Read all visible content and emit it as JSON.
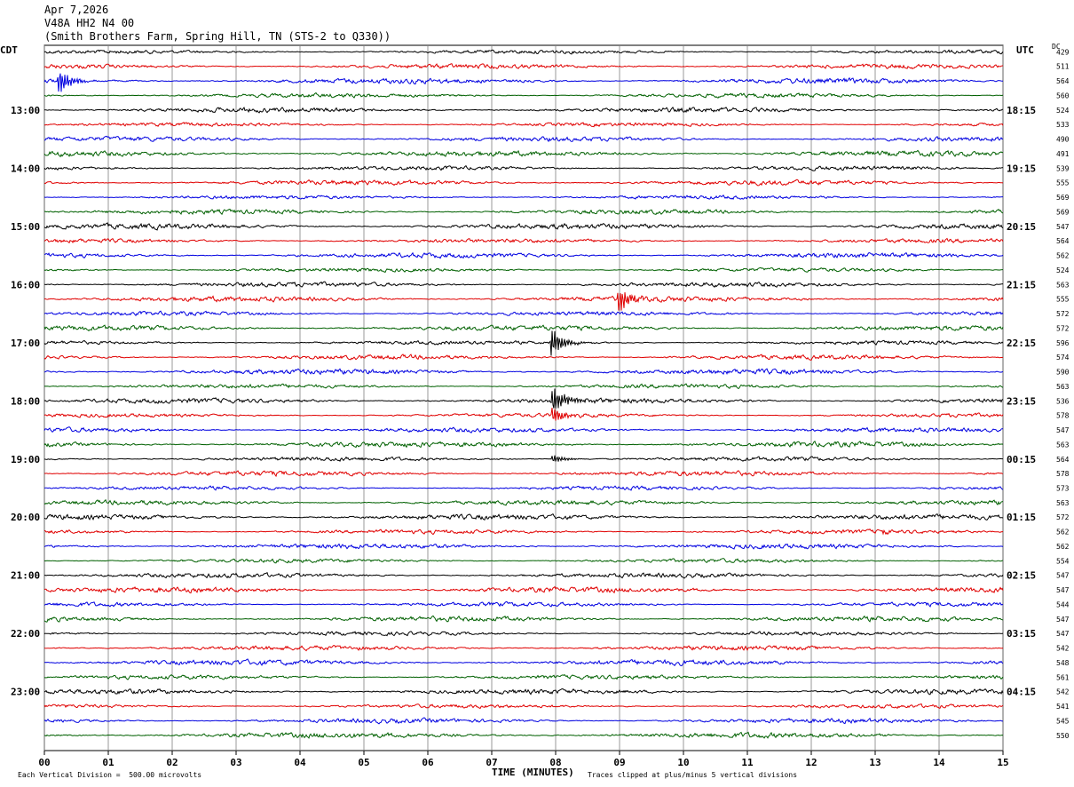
{
  "header": {
    "date": "Apr 7,2026",
    "channel": "V48A HH2 N4 00",
    "location": "(Smith Brothers Farm, Spring Hill, TN (STS-2 to Q330))"
  },
  "corners": {
    "left_zone": "CDT",
    "right_zone": "UTC",
    "dc_label": "DC"
  },
  "footer": {
    "scale_note": "Each Vertical Division =  500.00 microvolts",
    "clip_note": "Traces clipped at plus/minus 5 vertical divisions",
    "x_title": "TIME (MINUTES)"
  },
  "chart_data": {
    "type": "line",
    "title": "",
    "xlabel": "TIME (MINUTES)",
    "xlim": [
      0,
      15
    ],
    "x_ticks": [
      "00",
      "01",
      "02",
      "03",
      "04",
      "05",
      "06",
      "07",
      "08",
      "09",
      "10",
      "11",
      "12",
      "13",
      "14",
      "15"
    ],
    "trace_colors": [
      "#000000",
      "#e00000",
      "#0000e0",
      "#006000"
    ],
    "left_hour_labels": [
      "13:00",
      "14:00",
      "15:00",
      "16:00",
      "17:00",
      "18:00",
      "19:00",
      "20:00",
      "21:00",
      "22:00",
      "23:00"
    ],
    "right_hour_labels": [
      "18:15",
      "19:15",
      "20:15",
      "21:15",
      "22:15",
      "23:15",
      "00:15",
      "01:15",
      "02:15",
      "03:15",
      "04:15"
    ],
    "dc_offsets": [
      429,
      511,
      564,
      560,
      524,
      533,
      490,
      491,
      539,
      555,
      569,
      569,
      547,
      564,
      562,
      524,
      563,
      555,
      572,
      572,
      596,
      574,
      590,
      563,
      536,
      578,
      547,
      563,
      564,
      578,
      573,
      563,
      572,
      562,
      562,
      554,
      547,
      547,
      544,
      547,
      547,
      542,
      548,
      561,
      542,
      541,
      545,
      550
    ],
    "events": [
      {
        "trace": 2,
        "minute": 0.22,
        "amplitude_div": 4.5
      },
      {
        "trace": 17,
        "minute": 8.98,
        "amplitude_div": 4.5
      },
      {
        "trace": 20,
        "minute": 7.93,
        "amplitude_div": 5
      },
      {
        "trace": 24,
        "minute": 7.95,
        "amplitude_div": 5
      },
      {
        "trace": 25,
        "minute": 7.95,
        "amplitude_div": 3
      },
      {
        "trace": 28,
        "minute": 7.95,
        "amplitude_div": 1.5
      },
      {
        "trace": 33,
        "minute": 13.12,
        "amplitude_div": 0.6
      }
    ]
  }
}
